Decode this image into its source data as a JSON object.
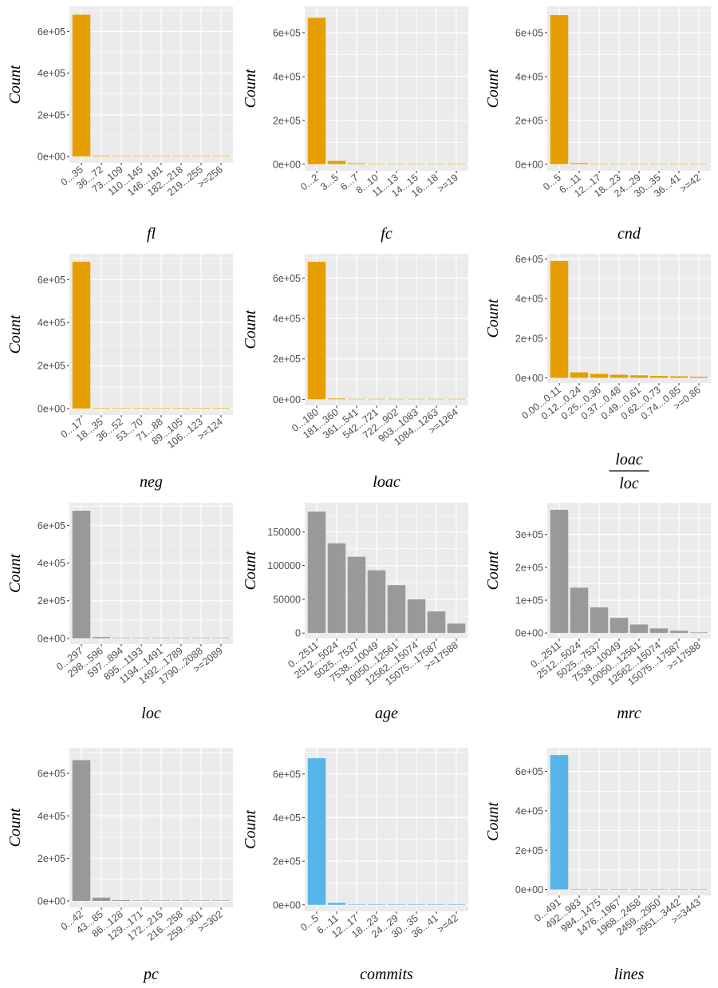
{
  "colors": {
    "orange": "#E69F00",
    "gray": "#999999",
    "blue": "#56B4E9",
    "panel": "#EBEBEB",
    "grid": "#FFFFFF"
  },
  "chart_data": [
    {
      "type": "bar",
      "xlabel": "fl",
      "ylabel": "Count",
      "color": "#E69F00",
      "ylim": [
        0,
        690000
      ],
      "yticks": [
        0,
        200000,
        400000,
        600000
      ],
      "ytick_labels": [
        "0e+00",
        "2e+05",
        "4e+05",
        "6e+05"
      ],
      "categories": [
        "0...35",
        "36...72",
        "73...109",
        "110...145",
        "146...181",
        "182...218",
        "219...255",
        ">=256"
      ],
      "values": [
        680000,
        3000,
        1200,
        600,
        400,
        300,
        200,
        500
      ]
    },
    {
      "type": "bar",
      "xlabel": "fc",
      "ylabel": "Count",
      "color": "#E69F00",
      "ylim": [
        0,
        690000
      ],
      "yticks": [
        0,
        200000,
        400000,
        600000
      ],
      "ytick_labels": [
        "0e+00",
        "2e+05",
        "4e+05",
        "6e+05"
      ],
      "categories": [
        "0...2",
        "3...5",
        "6...7",
        "8...10",
        "11...13",
        "14...15",
        "16...18",
        ">=19"
      ],
      "values": [
        668000,
        15000,
        4000,
        1500,
        800,
        400,
        300,
        600
      ]
    },
    {
      "type": "bar",
      "xlabel": "cnd",
      "ylabel": "Count",
      "color": "#E69F00",
      "ylim": [
        0,
        690000
      ],
      "yticks": [
        0,
        200000,
        400000,
        600000
      ],
      "ytick_labels": [
        "0e+00",
        "2e+05",
        "4e+05",
        "6e+05"
      ],
      "categories": [
        "0...5",
        "6...11",
        "12...17",
        "18...23",
        "24...29",
        "30...35",
        "36...41",
        ">=42"
      ],
      "values": [
        680000,
        5000,
        1500,
        700,
        400,
        300,
        200,
        500
      ]
    },
    {
      "type": "bar",
      "xlabel": "neg",
      "ylabel": "Count",
      "color": "#E69F00",
      "ylim": [
        0,
        690000
      ],
      "yticks": [
        0,
        200000,
        400000,
        600000
      ],
      "ytick_labels": [
        "0e+00",
        "2e+05",
        "4e+05",
        "6e+05"
      ],
      "categories": [
        "0...17",
        "18...35",
        "36...52",
        "53...70",
        "71...88",
        "89...105",
        "106...123",
        ">=124"
      ],
      "values": [
        683000,
        2500,
        800,
        400,
        300,
        200,
        150,
        300
      ]
    },
    {
      "type": "bar",
      "xlabel": "loac",
      "ylabel": "Count",
      "color": "#E69F00",
      "ylim": [
        0,
        690000
      ],
      "yticks": [
        0,
        200000,
        400000,
        600000
      ],
      "ytick_labels": [
        "0e+00",
        "2e+05",
        "4e+05",
        "6e+05"
      ],
      "categories": [
        "0...180",
        "181...360",
        "361...541",
        "542...721",
        "722...902",
        "903...1083",
        "1084...1263",
        ">=1264"
      ],
      "values": [
        680000,
        4000,
        1200,
        500,
        300,
        200,
        150,
        400
      ]
    },
    {
      "type": "bar",
      "xlabel_fraction": {
        "numerator": "loac",
        "denominator": "loc"
      },
      "ylabel": "Count",
      "color": "#E69F00",
      "ylim": [
        0,
        600000
      ],
      "yticks": [
        0,
        200000,
        400000,
        600000
      ],
      "ytick_labels": [
        "0e+00",
        "2e+05",
        "4e+05",
        "6e+05"
      ],
      "categories": [
        "0.00...0.11",
        "0.12...0.24",
        "0.25...0.36",
        "0.37...0.48",
        "0.49...0.61",
        "0.62...0.73",
        "0.74...0.85",
        ">=0.86"
      ],
      "values": [
        590000,
        28000,
        20000,
        16000,
        13000,
        10000,
        8000,
        6000
      ]
    },
    {
      "type": "bar",
      "xlabel": "loc",
      "ylabel": "Count",
      "color": "#999999",
      "ylim": [
        0,
        690000
      ],
      "yticks": [
        0,
        200000,
        400000,
        600000
      ],
      "ytick_labels": [
        "0e+00",
        "2e+05",
        "4e+05",
        "6e+05"
      ],
      "categories": [
        "0...297",
        "298...596",
        "597...894",
        "895...1193",
        "1194...1491",
        "1492...1789",
        "1790...2088",
        ">=2089"
      ],
      "values": [
        678000,
        7000,
        1500,
        600,
        300,
        200,
        150,
        400
      ]
    },
    {
      "type": "bar",
      "xlabel": "age",
      "ylabel": "Count",
      "color": "#999999",
      "ylim": [
        0,
        185000
      ],
      "yticks": [
        0,
        50000,
        100000,
        150000
      ],
      "ytick_labels": [
        "0",
        "50000",
        "100000",
        "150000"
      ],
      "categories": [
        "0...2511",
        "2512...5024",
        "5025...7537",
        "7538...10049",
        "10050...12561",
        "12562...15074",
        "15075...17587",
        ">=17588"
      ],
      "values": [
        180000,
        133000,
        113000,
        93000,
        71000,
        50000,
        32000,
        14000
      ]
    },
    {
      "type": "bar",
      "xlabel": "mrc",
      "ylabel": "Count",
      "color": "#999999",
      "ylim": [
        0,
        380000
      ],
      "yticks": [
        0,
        100000,
        200000,
        300000
      ],
      "ytick_labels": [
        "0e+00",
        "1e+05",
        "2e+05",
        "3e+05"
      ],
      "categories": [
        "0...2511",
        "2512...5024",
        "5025...7537",
        "7538...10049",
        "10050...12561",
        "12562...15074",
        "15075...17587",
        ">=17588"
      ],
      "values": [
        375000,
        138000,
        78000,
        46000,
        26000,
        14000,
        7000,
        2000
      ]
    },
    {
      "type": "bar",
      "xlabel": "pc",
      "ylabel": "Count",
      "color": "#999999",
      "ylim": [
        0,
        690000
      ],
      "yticks": [
        0,
        200000,
        400000,
        600000
      ],
      "ytick_labels": [
        "0e+00",
        "2e+05",
        "4e+05",
        "6e+05"
      ],
      "categories": [
        "0...42",
        "43...85",
        "86...128",
        "129...171",
        "172...215",
        "216...258",
        "259...301",
        ">=302"
      ],
      "values": [
        662000,
        16000,
        4000,
        1500,
        700,
        400,
        300,
        500
      ]
    },
    {
      "type": "bar",
      "xlabel": "commits",
      "ylabel": "Count",
      "color": "#56B4E9",
      "ylim": [
        0,
        690000
      ],
      "yticks": [
        0,
        200000,
        400000,
        600000
      ],
      "ytick_labels": [
        "0e+00",
        "2e+05",
        "4e+05",
        "6e+05"
      ],
      "categories": [
        "0...5",
        "6...11",
        "12...17",
        "18...23",
        "24...29",
        "30...35",
        "36...41",
        ">=42"
      ],
      "values": [
        672000,
        9000,
        2000,
        800,
        400,
        300,
        200,
        400
      ]
    },
    {
      "type": "bar",
      "xlabel": "lines",
      "ylabel": "Count",
      "color": "#56B4E9",
      "ylim": [
        0,
        690000
      ],
      "yticks": [
        0,
        200000,
        400000,
        600000
      ],
      "ytick_labels": [
        "0e+00",
        "2e+05",
        "4e+05",
        "6e+05"
      ],
      "categories": [
        "0...491",
        "492...983",
        "984...1475",
        "1476...1967",
        "1968...2458",
        "2459...2950",
        "2951...3442",
        ">=3443"
      ],
      "values": [
        683000,
        2500,
        800,
        400,
        250,
        200,
        150,
        300
      ]
    }
  ]
}
